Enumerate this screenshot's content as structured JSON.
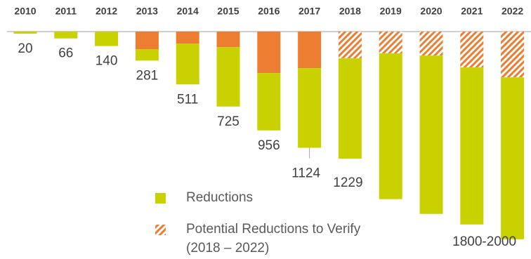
{
  "chart_data": {
    "type": "bar",
    "stacked": true,
    "inverted": true,
    "categories": [
      "2010",
      "2011",
      "2012",
      "2013",
      "2014",
      "2015",
      "2016",
      "2017",
      "2018",
      "2019",
      "2020",
      "2021",
      "2022"
    ],
    "series": [
      {
        "name": "Reductions",
        "color": "#c9d200",
        "values": [
          20,
          66,
          140,
          111,
          395,
          575,
          554,
          770,
          970,
          1410,
          1532,
          1519,
          1566
        ]
      },
      {
        "color": "#ed7d31",
        "values": [
          0,
          0,
          0,
          170,
          116,
          150,
          402,
          354,
          0,
          0,
          0,
          0,
          0
        ]
      },
      {
        "name": "Potential Reductions to Verify (2018 – 2022)",
        "color": "#ed7d31",
        "hatched": true,
        "values": [
          0,
          0,
          0,
          0,
          0,
          0,
          0,
          0,
          259,
          211,
          232,
          347,
          443
        ]
      }
    ],
    "value_labels": [
      "20",
      "66",
      "140",
      "281",
      "511",
      "725",
      "956",
      "1124",
      "1229",
      null,
      null,
      null,
      "1800-2000"
    ],
    "ylim": [
      0,
      2200
    ],
    "grid": false
  }
}
